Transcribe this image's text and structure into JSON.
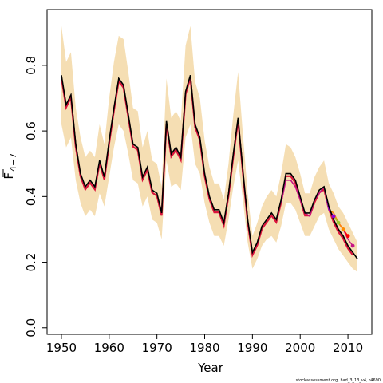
{
  "chart_data": {
    "type": "line",
    "title": "",
    "xlabel": "Year",
    "ylabel": "F",
    "ylabel_subscript": "4−7",
    "xlim": [
      1947,
      2015
    ],
    "ylim": [
      -0.02,
      0.97
    ],
    "x_ticks": [
      1950,
      1960,
      1970,
      1980,
      1990,
      2000,
      2010
    ],
    "y_ticks": [
      0.0,
      0.2,
      0.4,
      0.6,
      0.8
    ],
    "y_tick_labels": [
      "0.0",
      "0.2",
      "0.4",
      "0.6",
      "0.8"
    ],
    "grid": false,
    "footnote": "stockassessment.org, had_3_13_v4, r4690",
    "colors": {
      "band": "#F5DEB3",
      "final": "#000000",
      "retro": [
        "#DC143C",
        "#C71585",
        "#FF0000",
        "#FF8C00",
        "#9ACD32",
        "#9400D3"
      ]
    },
    "series": [
      {
        "role": "final",
        "x": [
          1950,
          1951,
          1952,
          1953,
          1954,
          1955,
          1956,
          1957,
          1958,
          1959,
          1960,
          1961,
          1962,
          1963,
          1964,
          1965,
          1966,
          1967,
          1968,
          1969,
          1970,
          1971,
          1972,
          1973,
          1974,
          1975,
          1976,
          1977,
          1978,
          1979,
          1980,
          1981,
          1982,
          1983,
          1984,
          1985,
          1986,
          1987,
          1988,
          1989,
          1990,
          1991,
          1992,
          1993,
          1994,
          1995,
          1996,
          1997,
          1998,
          1999,
          2000,
          2001,
          2002,
          2003,
          2004,
          2005,
          2006,
          2007,
          2008,
          2009,
          2010,
          2011,
          2012
        ],
        "values": [
          0.77,
          0.68,
          0.71,
          0.56,
          0.47,
          0.43,
          0.45,
          0.43,
          0.51,
          0.46,
          0.57,
          0.67,
          0.76,
          0.74,
          0.65,
          0.56,
          0.55,
          0.46,
          0.49,
          0.42,
          0.41,
          0.35,
          0.63,
          0.53,
          0.55,
          0.52,
          0.72,
          0.77,
          0.62,
          0.58,
          0.47,
          0.4,
          0.36,
          0.36,
          0.32,
          0.41,
          0.53,
          0.64,
          0.48,
          0.33,
          0.23,
          0.26,
          0.31,
          0.33,
          0.35,
          0.33,
          0.39,
          0.47,
          0.47,
          0.45,
          0.4,
          0.35,
          0.35,
          0.39,
          0.42,
          0.43,
          0.37,
          0.33,
          0.3,
          0.28,
          0.25,
          0.23,
          0.21
        ]
      }
    ],
    "retro_series": [
      {
        "end": 2011,
        "values_from_2005": [
          0.43,
          0.36,
          0.35,
          0.32,
          0.3,
          0.27,
          0.25
        ]
      },
      {
        "end": 2010,
        "values_from_2005": [
          0.43,
          0.36,
          0.34,
          0.32,
          0.3,
          0.28
        ]
      },
      {
        "end": 2009,
        "values_from_2005": [
          0.43,
          0.36,
          0.35,
          0.32,
          0.3
        ]
      },
      {
        "end": 2008,
        "values_from_2005": [
          0.43,
          0.36,
          0.34,
          0.32
        ]
      },
      {
        "end": 2007,
        "values_from_2005": [
          0.43,
          0.36,
          0.34
        ]
      }
    ],
    "retro_overlay_1996_2005": [
      0.38,
      0.45,
      0.45,
      0.43,
      0.39,
      0.35,
      0.34,
      0.39,
      0.41,
      0.43
    ],
    "band_upper": [
      0.92,
      0.81,
      0.84,
      0.67,
      0.58,
      0.52,
      0.54,
      0.52,
      0.62,
      0.56,
      0.7,
      0.81,
      0.89,
      0.88,
      0.78,
      0.67,
      0.66,
      0.55,
      0.6,
      0.51,
      0.5,
      0.43,
      0.76,
      0.64,
      0.66,
      0.63,
      0.86,
      0.92,
      0.75,
      0.7,
      0.57,
      0.49,
      0.44,
      0.44,
      0.39,
      0.5,
      0.65,
      0.78,
      0.59,
      0.41,
      0.28,
      0.32,
      0.37,
      0.4,
      0.42,
      0.4,
      0.47,
      0.56,
      0.55,
      0.52,
      0.47,
      0.41,
      0.41,
      0.46,
      0.49,
      0.51,
      0.44,
      0.41,
      0.37,
      0.35,
      0.32,
      0.29,
      0.26
    ],
    "band_lower": [
      0.62,
      0.55,
      0.58,
      0.45,
      0.38,
      0.34,
      0.36,
      0.34,
      0.41,
      0.37,
      0.46,
      0.55,
      0.62,
      0.6,
      0.53,
      0.45,
      0.44,
      0.37,
      0.4,
      0.33,
      0.32,
      0.27,
      0.51,
      0.43,
      0.44,
      0.42,
      0.58,
      0.62,
      0.5,
      0.47,
      0.38,
      0.32,
      0.28,
      0.28,
      0.25,
      0.33,
      0.43,
      0.51,
      0.39,
      0.26,
      0.18,
      0.21,
      0.25,
      0.27,
      0.28,
      0.26,
      0.31,
      0.38,
      0.38,
      0.36,
      0.32,
      0.28,
      0.28,
      0.31,
      0.34,
      0.35,
      0.3,
      0.27,
      0.24,
      0.22,
      0.2,
      0.18,
      0.17
    ]
  }
}
